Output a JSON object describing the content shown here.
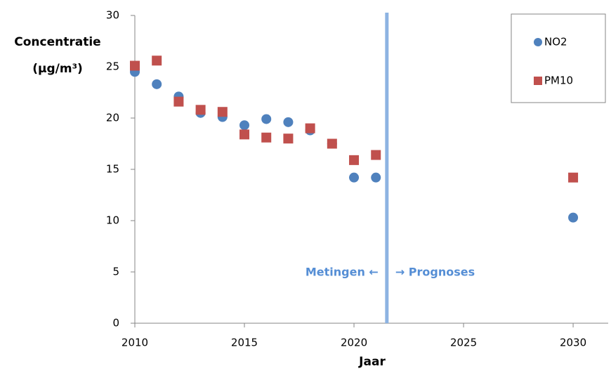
{
  "chart_data": {
    "type": "scatter",
    "y_label_line1": "Concentratie",
    "y_label_line2": "(µg/m³)",
    "x_label": "Jaar",
    "x": [
      2010,
      2011,
      2012,
      2013,
      2014,
      2015,
      2016,
      2017,
      2018,
      2019,
      2020,
      2021,
      2030
    ],
    "series": [
      {
        "name": "NO2",
        "color": "#4f81bd",
        "marker": "circle",
        "values": [
          24.5,
          23.3,
          22.1,
          20.5,
          20.1,
          19.3,
          19.9,
          19.6,
          18.8,
          17.5,
          14.2,
          14.2,
          10.3
        ]
      },
      {
        "name": "PM10",
        "color": "#c0504d",
        "marker": "square",
        "values": [
          25.1,
          25.6,
          21.6,
          20.8,
          20.6,
          18.4,
          18.1,
          18.0,
          19.0,
          17.5,
          15.9,
          16.4,
          14.2
        ]
      }
    ],
    "xlim": [
      2010,
      2031.6
    ],
    "xticks": [
      2010,
      2015,
      2020,
      2025,
      2030
    ],
    "ylim": [
      0,
      30
    ],
    "yticks": [
      0,
      5,
      10,
      15,
      20,
      25,
      30
    ],
    "divider_x": 2021.5,
    "divider_color": "#8db3e2",
    "annotation_left": "Metingen ←",
    "annotation_right": "→ Prognoses",
    "legend": "top-right"
  }
}
